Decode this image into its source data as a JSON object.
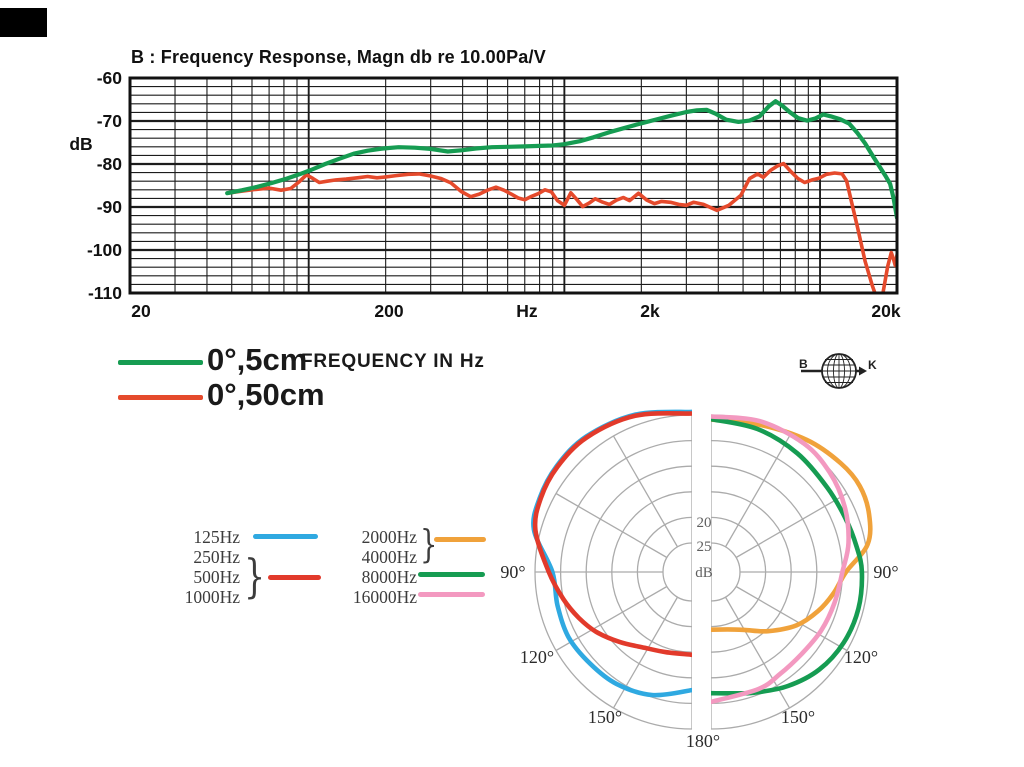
{
  "page": {
    "background": "#ffffff"
  },
  "bk_logo": {
    "left_letter": "B",
    "right_letter": "K"
  },
  "polar_legend": {
    "brace": "}",
    "left": [
      {
        "label": "125Hz",
        "swatch": "#2fa9e1"
      },
      {
        "label": "250Hz"
      },
      {
        "label": "500Hz"
      },
      {
        "label": "1000Hz"
      }
    ],
    "left_group_swatch": "#e23a2b",
    "right": [
      {
        "label": "2000Hz"
      },
      {
        "label": "4000Hz"
      },
      {
        "label": "8000Hz",
        "swatch": "#169c52"
      },
      {
        "label": "16000Hz",
        "swatch": "#f399c0"
      }
    ],
    "right_group_swatch": "#f0a23b"
  },
  "chart_data": [
    {
      "type": "line",
      "title": "B : Frequency Response, Magn db re 10.00Pa/V",
      "xlabel": "FREQUENCY IN Hz",
      "ylabel": "dB",
      "x_scale": "log",
      "xlim": [
        20,
        20000
      ],
      "ylim": [
        -110,
        -60
      ],
      "grid": true,
      "x_ticks": [
        {
          "f": 20,
          "label": "20"
        },
        {
          "f": 200,
          "label": "200"
        },
        {
          "f": 700,
          "label": "Hz"
        },
        {
          "f": 2000,
          "label": "2k"
        },
        {
          "f": 20000,
          "label": "20k"
        }
      ],
      "y_ticks": [
        -60,
        -70,
        -80,
        -90,
        -100,
        -110
      ],
      "series": [
        {
          "name": "0°,50cm",
          "color": "#e54a2c",
          "width": 3.6,
          "points": [
            [
              48,
              -86.8
            ],
            [
              55,
              -86.3
            ],
            [
              62,
              -85.9
            ],
            [
              70,
              -85.6
            ],
            [
              78,
              -86.1
            ],
            [
              85,
              -85.7
            ],
            [
              92,
              -84.1
            ],
            [
              98,
              -82.5
            ],
            [
              104,
              -83.4
            ],
            [
              110,
              -84.3
            ],
            [
              118,
              -84.0
            ],
            [
              128,
              -83.7
            ],
            [
              140,
              -83.5
            ],
            [
              155,
              -83.2
            ],
            [
              170,
              -82.9
            ],
            [
              185,
              -83.2
            ],
            [
              200,
              -83.0
            ],
            [
              220,
              -82.7
            ],
            [
              245,
              -82.4
            ],
            [
              270,
              -82.3
            ],
            [
              300,
              -82.8
            ],
            [
              330,
              -83.4
            ],
            [
              360,
              -84.4
            ],
            [
              395,
              -86.4
            ],
            [
              430,
              -87.6
            ],
            [
              465,
              -87.0
            ],
            [
              500,
              -86.1
            ],
            [
              540,
              -85.4
            ],
            [
              580,
              -86.1
            ],
            [
              620,
              -87.0
            ],
            [
              660,
              -87.9
            ],
            [
              700,
              -88.3
            ],
            [
              745,
              -87.5
            ],
            [
              790,
              -86.9
            ],
            [
              840,
              -86.0
            ],
            [
              890,
              -86.5
            ],
            [
              940,
              -88.5
            ],
            [
              1000,
              -89.6
            ],
            [
              1060,
              -86.7
            ],
            [
              1120,
              -88.3
            ],
            [
              1180,
              -89.9
            ],
            [
              1250,
              -89.1
            ],
            [
              1320,
              -88.1
            ],
            [
              1400,
              -88.8
            ],
            [
              1500,
              -89.4
            ],
            [
              1600,
              -88.4
            ],
            [
              1700,
              -87.8
            ],
            [
              1800,
              -88.5
            ],
            [
              1950,
              -86.8
            ],
            [
              2100,
              -88.4
            ],
            [
              2250,
              -89.2
            ],
            [
              2400,
              -88.7
            ],
            [
              2600,
              -88.9
            ],
            [
              2800,
              -89.4
            ],
            [
              3000,
              -89.6
            ],
            [
              3200,
              -88.9
            ],
            [
              3500,
              -89.4
            ],
            [
              3950,
              -90.8
            ],
            [
              4400,
              -89.6
            ],
            [
              4900,
              -87.3
            ],
            [
              5300,
              -83.4
            ],
            [
              5700,
              -82.3
            ],
            [
              6000,
              -83.1
            ],
            [
              6400,
              -81.5
            ],
            [
              6800,
              -80.5
            ],
            [
              7200,
              -79.9
            ],
            [
              7700,
              -81.8
            ],
            [
              8200,
              -83.4
            ],
            [
              8700,
              -84.3
            ],
            [
              9300,
              -83.7
            ],
            [
              9900,
              -83.3
            ],
            [
              10600,
              -82.4
            ],
            [
              11400,
              -82.1
            ],
            [
              12200,
              -82.3
            ],
            [
              12700,
              -83.9
            ],
            [
              13300,
              -89.0
            ],
            [
              14000,
              -94.6
            ],
            [
              15000,
              -102.6
            ],
            [
              16000,
              -108.2
            ],
            [
              16800,
              -111.8
            ],
            [
              17600,
              -110.2
            ],
            [
              18400,
              -103.8
            ],
            [
              19000,
              -100.6
            ],
            [
              19400,
              -102.2
            ],
            [
              19700,
              -103.6
            ],
            [
              20000,
              -101.2
            ]
          ]
        },
        {
          "name": "0°,5cm",
          "color": "#169c52",
          "width": 4.2,
          "points": [
            [
              48,
              -86.8
            ],
            [
              55,
              -86.1
            ],
            [
              63,
              -85.3
            ],
            [
              72,
              -84.4
            ],
            [
              82,
              -83.4
            ],
            [
              92,
              -82.4
            ],
            [
              102,
              -81.4
            ],
            [
              115,
              -80.1
            ],
            [
              130,
              -78.9
            ],
            [
              150,
              -77.6
            ],
            [
              170,
              -76.9
            ],
            [
              195,
              -76.4
            ],
            [
              225,
              -76.1
            ],
            [
              260,
              -76.2
            ],
            [
              300,
              -76.5
            ],
            [
              350,
              -77.1
            ],
            [
              400,
              -76.8
            ],
            [
              450,
              -76.4
            ],
            [
              520,
              -76.1
            ],
            [
              600,
              -76.0
            ],
            [
              700,
              -75.9
            ],
            [
              800,
              -75.8
            ],
            [
              900,
              -75.7
            ],
            [
              1000,
              -75.4
            ],
            [
              1150,
              -74.7
            ],
            [
              1300,
              -73.8
            ],
            [
              1500,
              -72.6
            ],
            [
              1700,
              -71.7
            ],
            [
              1900,
              -70.9
            ],
            [
              2200,
              -69.9
            ],
            [
              2600,
              -68.8
            ],
            [
              3000,
              -67.9
            ],
            [
              3300,
              -67.5
            ],
            [
              3600,
              -67.4
            ],
            [
              3900,
              -68.3
            ],
            [
              4300,
              -69.7
            ],
            [
              4800,
              -70.2
            ],
            [
              5300,
              -69.9
            ],
            [
              5800,
              -68.9
            ],
            [
              6300,
              -66.6
            ],
            [
              6700,
              -65.4
            ],
            [
              7100,
              -66.4
            ],
            [
              7600,
              -67.9
            ],
            [
              8200,
              -69.3
            ],
            [
              8900,
              -69.9
            ],
            [
              9600,
              -69.4
            ],
            [
              10300,
              -68.5
            ],
            [
              11000,
              -68.9
            ],
            [
              12000,
              -69.6
            ],
            [
              13000,
              -70.6
            ],
            [
              14000,
              -72.8
            ],
            [
              15000,
              -75.2
            ],
            [
              16000,
              -77.9
            ],
            [
              17000,
              -80.4
            ],
            [
              18000,
              -82.7
            ],
            [
              18800,
              -84.6
            ],
            [
              19400,
              -88.0
            ],
            [
              20000,
              -92.5
            ]
          ]
        }
      ]
    },
    {
      "type": "polar",
      "unit": "dB",
      "rings_db": [
        0,
        5,
        10,
        15,
        20,
        25
      ],
      "ring_labels": [
        "20",
        "25"
      ],
      "angle_labels": [
        "90°",
        "120°",
        "150°",
        "180°"
      ],
      "spoke_step_deg": 30,
      "series": [
        {
          "name": "125Hz",
          "color": "#2fa9e1",
          "side": "left",
          "points": [
            [
              0,
              -0.6
            ],
            [
              20,
              -2.0
            ],
            [
              38,
              -2.9
            ],
            [
              52,
              -2.9
            ],
            [
              64,
              -2.4
            ],
            [
              75,
              -1.3
            ],
            [
              90,
              3.4
            ],
            [
              104,
              3.6
            ],
            [
              118,
              3.4
            ],
            [
              132,
              3.9
            ],
            [
              146,
              4.3
            ],
            [
              162,
              5.4
            ],
            [
              180,
              7.6
            ]
          ]
        },
        {
          "name": "500Hz-1000Hz",
          "color": "#e23a2b",
          "side": "left",
          "points": [
            [
              0,
              -0.3
            ],
            [
              20,
              -1.8
            ],
            [
              38,
              -2.7
            ],
            [
              52,
              -2.7
            ],
            [
              64,
              -2.2
            ],
            [
              75,
              -1.0
            ],
            [
              90,
              2.7
            ],
            [
              102,
              5.0
            ],
            [
              112,
              6.8
            ],
            [
              122,
              8.6
            ],
            [
              134,
              11.0
            ],
            [
              148,
              13.2
            ],
            [
              162,
              14.2
            ],
            [
              180,
              14.5
            ]
          ]
        },
        {
          "name": "2000Hz-4000Hz",
          "color": "#f0a23b",
          "side": "right",
          "points": [
            [
              0,
              0.9
            ],
            [
              18,
              0.4
            ],
            [
              36,
              -1.2
            ],
            [
              50,
              -2.4
            ],
            [
              60,
              -2.9
            ],
            [
              70,
              -2.2
            ],
            [
              80,
              -0.4
            ],
            [
              90,
              4.3
            ],
            [
              100,
              6.4
            ],
            [
              110,
              8.4
            ],
            [
              122,
              11.0
            ],
            [
              136,
              14.6
            ],
            [
              150,
              17.6
            ],
            [
              164,
              19.0
            ],
            [
              180,
              19.4
            ]
          ]
        },
        {
          "name": "8000Hz",
          "color": "#169c52",
          "side": "right",
          "points": [
            [
              0,
              0.8
            ],
            [
              18,
              1.3
            ],
            [
              36,
              2.0
            ],
            [
              54,
              2.6
            ],
            [
              68,
              2.4
            ],
            [
              80,
              1.8
            ],
            [
              90,
              1.2
            ],
            [
              104,
              1.0
            ],
            [
              118,
              1.3
            ],
            [
              132,
              2.2
            ],
            [
              146,
              3.8
            ],
            [
              160,
              5.6
            ],
            [
              170,
              6.6
            ],
            [
              180,
              7.0
            ]
          ]
        },
        {
          "name": "16000Hz",
          "color": "#f399c0",
          "side": "right",
          "points": [
            [
              0,
              0.3
            ],
            [
              18,
              -0.3
            ],
            [
              36,
              -0.3
            ],
            [
              50,
              0.4
            ],
            [
              64,
              1.6
            ],
            [
              78,
              3.2
            ],
            [
              90,
              5.0
            ],
            [
              104,
              5.8
            ],
            [
              118,
              6.3
            ],
            [
              132,
              6.8
            ],
            [
              146,
              6.6
            ],
            [
              158,
              6.0
            ],
            [
              180,
              5.3
            ]
          ]
        }
      ]
    }
  ]
}
